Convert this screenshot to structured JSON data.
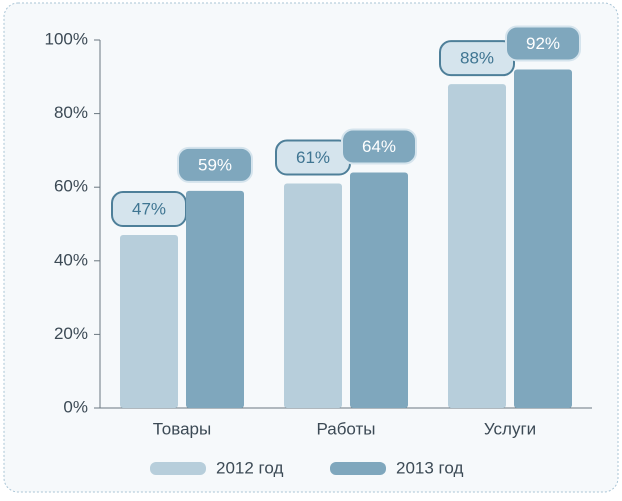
{
  "chart_data": {
    "type": "bar",
    "categories": [
      "Товары",
      "Работы",
      "Услуги"
    ],
    "series": [
      {
        "name": "2012 год",
        "color": "#b7cedb",
        "values": [
          47,
          61,
          88
        ],
        "value_labels": [
          "47%",
          "61%",
          "88%"
        ]
      },
      {
        "name": "2013 год",
        "color": "#7fa7bd",
        "values": [
          59,
          64,
          92
        ],
        "value_labels": [
          "59%",
          "64%",
          "92%"
        ]
      }
    ],
    "ylim": [
      0,
      100
    ],
    "yticks": [
      {
        "value": 0,
        "label": "0%"
      },
      {
        "value": 20,
        "label": "20%"
      },
      {
        "value": 40,
        "label": "40%"
      },
      {
        "value": 60,
        "label": "60%"
      },
      {
        "value": 80,
        "label": "80%"
      },
      {
        "value": 100,
        "label": "100%"
      }
    ],
    "legend": "bottom"
  }
}
